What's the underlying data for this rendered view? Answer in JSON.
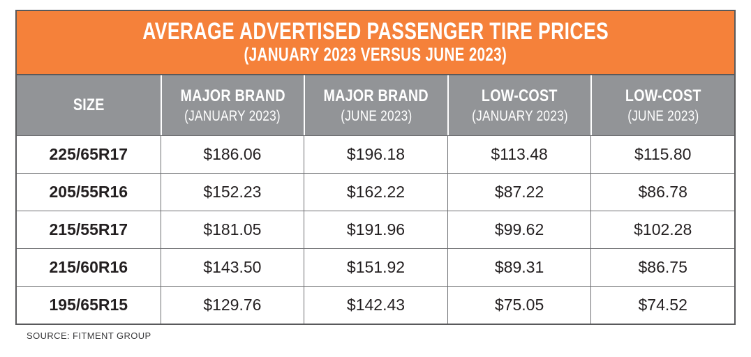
{
  "colors": {
    "title_bg": "#F5813A",
    "header_bg": "#929497",
    "outer_border": "#59595B",
    "cell_border": "#6D6E71",
    "title_text": "#FFFFFF",
    "body_text": "#231F20"
  },
  "chart_data": {
    "type": "table",
    "title": "AVERAGE ADVERTISED PASSENGER TIRE PRICES",
    "subtitle": "(JANUARY 2023 VERSUS JUNE 2023)",
    "columns": [
      {
        "label": "SIZE",
        "sublabel": ""
      },
      {
        "label": "MAJOR BRAND",
        "sublabel": "(JANUARY 2023)"
      },
      {
        "label": "MAJOR BRAND",
        "sublabel": "(JUNE 2023)"
      },
      {
        "label": "LOW-COST",
        "sublabel": "(JANUARY 2023)"
      },
      {
        "label": "LOW-COST",
        "sublabel": "(JUNE 2023)"
      }
    ],
    "rows": [
      {
        "size": "225/65R17",
        "values": [
          "$186.06",
          "$196.18",
          "$113.48",
          "$115.80"
        ]
      },
      {
        "size": "205/55R16",
        "values": [
          "$152.23",
          "$162.22",
          "$87.22",
          "$86.78"
        ]
      },
      {
        "size": "215/55R17",
        "values": [
          "$181.05",
          "$191.96",
          "$99.62",
          "$102.28"
        ]
      },
      {
        "size": "215/60R16",
        "values": [
          "$143.50",
          "$151.92",
          "$89.31",
          "$86.75"
        ]
      },
      {
        "size": "195/65R15",
        "values": [
          "$129.76",
          "$142.43",
          "$75.05",
          "$74.52"
        ]
      }
    ],
    "source": "SOURCE: FITMENT GROUP"
  }
}
